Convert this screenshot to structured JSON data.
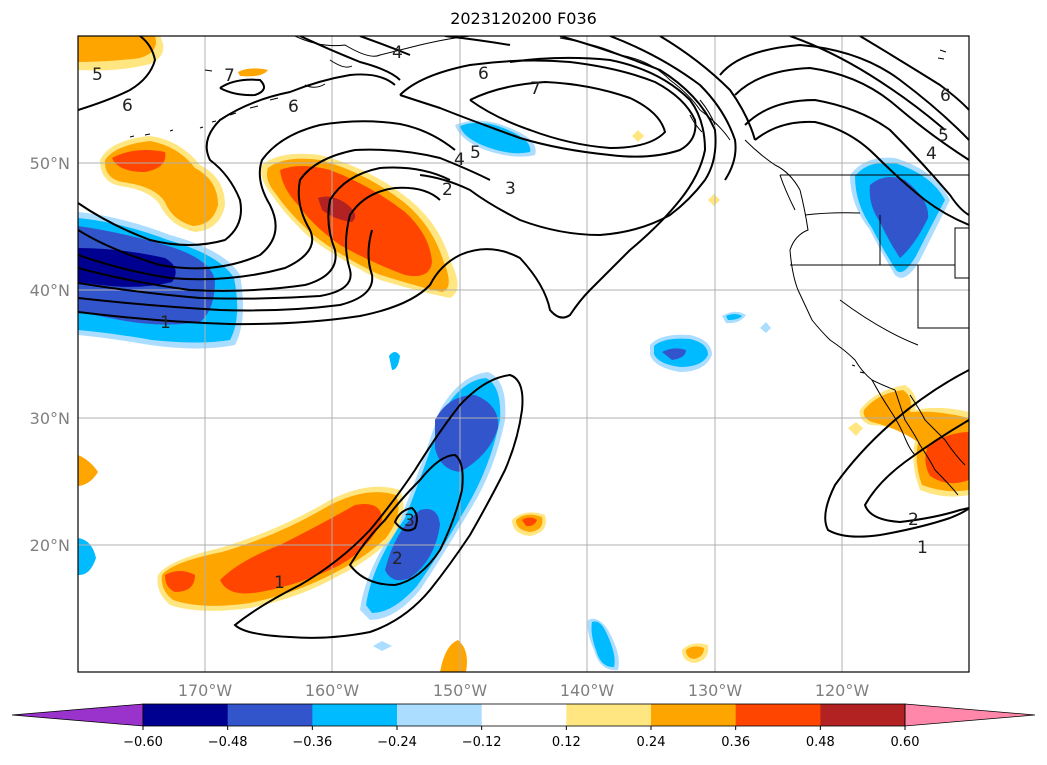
{
  "title": "2023120200 F036",
  "map": {
    "lat_labels": [
      "50°N",
      "40°N",
      "30°N",
      "20°N"
    ],
    "lon_labels": [
      "170°W",
      "160°W",
      "150°W",
      "140°W",
      "130°W",
      "120°W"
    ],
    "contour_labels": {
      "c_n4": "4",
      "c_n6": "6",
      "c_n7": "7",
      "c_n6b": "6",
      "c_n5": "5",
      "c_a7": "7",
      "c_a6": "6",
      "c_a5a": "5",
      "c_a1": "1",
      "c_b5": "5",
      "c_b4": "4",
      "c_b2": "2",
      "c_b3": "3",
      "c_e6": "6",
      "c_e5": "5",
      "c_e4": "4",
      "c_s3": "3",
      "c_s2": "2",
      "c_s1": "1",
      "c_se2": "2",
      "c_se1": "1"
    },
    "colors": {
      "land_line": "#000000",
      "contour": "#000000",
      "grid": "#b0b0b0"
    }
  },
  "colorbar": {
    "ticks": [
      "−0.60",
      "−0.48",
      "−0.36",
      "−0.24",
      "−0.12",
      "0.12",
      "0.24",
      "0.36",
      "0.48",
      "0.60"
    ],
    "colors": [
      "#9933cc",
      "#000090",
      "#3355cc",
      "#00bbff",
      "#aaddff",
      "#ffffff",
      "#ffe680",
      "#ffa500",
      "#ff4500",
      "#b22222",
      "#ff88aa"
    ]
  }
}
